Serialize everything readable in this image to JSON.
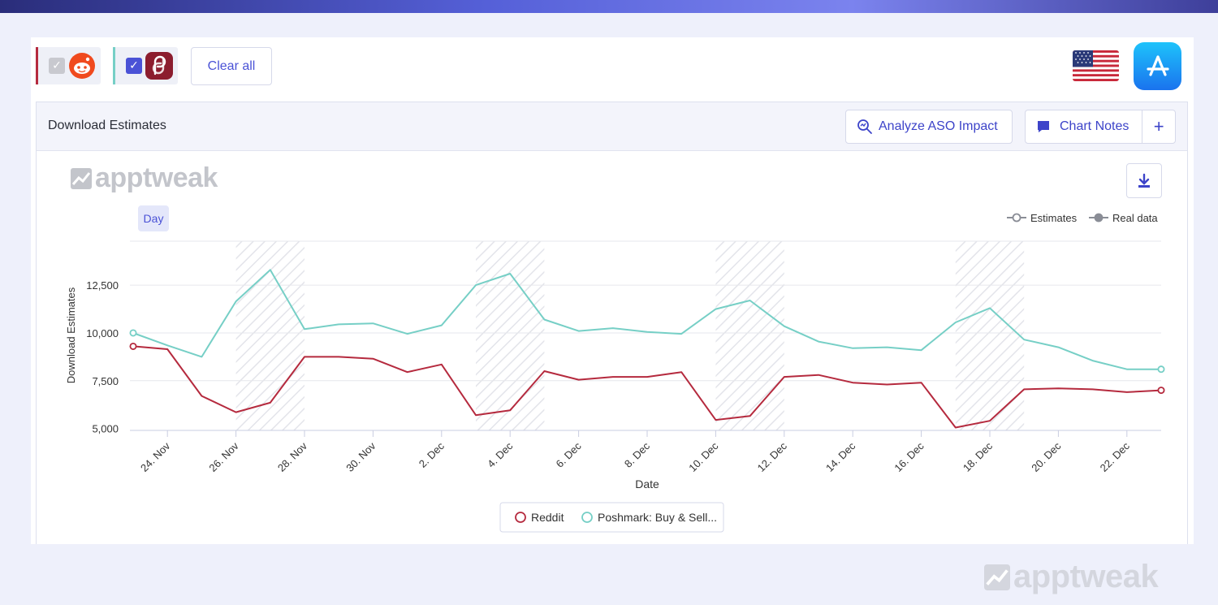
{
  "toolbar": {
    "clear_label": "Clear all"
  },
  "apps": [
    {
      "name": "Reddit",
      "color": "#b52a3e",
      "checked": true,
      "icon": "reddit-icon"
    },
    {
      "name": "Poshmark",
      "color": "#76cfc6",
      "checked": true,
      "icon": "poshmark-icon"
    }
  ],
  "country_icon": "us-flag-icon",
  "store_icon": "app-store-icon",
  "card": {
    "title": "Download Estimates",
    "analyze_label": "Analyze ASO Impact",
    "notes_label": "Chart Notes",
    "add_label": "+"
  },
  "brand": {
    "watermark": "apptweak"
  },
  "granularity": "Day",
  "chart_data": {
    "type": "line",
    "title": "",
    "xlabel": "Date",
    "ylabel": "Download Estimates",
    "ylim": [
      4900,
      14800
    ],
    "yticks": [
      5000,
      7500,
      10000,
      12500
    ],
    "ytick_labels": [
      "5,000",
      "7,500",
      "10,000",
      "12,500"
    ],
    "x": [
      "23 Nov",
      "24 Nov",
      "25 Nov",
      "26 Nov",
      "27 Nov",
      "28 Nov",
      "29 Nov",
      "30 Nov",
      "1 Dec",
      "2 Dec",
      "3 Dec",
      "4 Dec",
      "5 Dec",
      "6 Dec",
      "7 Dec",
      "8 Dec",
      "9 Dec",
      "10 Dec",
      "11 Dec",
      "12 Dec",
      "13 Dec",
      "14 Dec",
      "15 Dec",
      "16 Dec",
      "17 Dec",
      "18 Dec",
      "19 Dec",
      "20 Dec",
      "21 Dec",
      "22 Dec",
      "23 Dec"
    ],
    "xtick_labels": [
      "24. Nov",
      "26. Nov",
      "28. Nov",
      "30. Nov",
      "2. Dec",
      "4. Dec",
      "6. Dec",
      "8. Dec",
      "10. Dec",
      "12. Dec",
      "14. Dec",
      "16. Dec",
      "18. Dec",
      "20. Dec",
      "22. Dec"
    ],
    "shaded_ranges": [
      [
        "26 Nov",
        "28 Nov"
      ],
      [
        "3 Dec",
        "5 Dec"
      ],
      [
        "10 Dec",
        "12 Dec"
      ],
      [
        "17 Dec",
        "19 Dec"
      ]
    ],
    "series": [
      {
        "name": "Reddit",
        "color": "#b52a3e",
        "values": [
          9300,
          9150,
          6700,
          5850,
          6350,
          8750,
          8750,
          8650,
          7950,
          8350,
          5700,
          5950,
          8000,
          7550,
          7700,
          7700,
          7950,
          5450,
          5650,
          7700,
          7800,
          7400,
          7300,
          7400,
          5050,
          5400,
          7050,
          7100,
          7050,
          6900,
          7000
        ]
      },
      {
        "name": "Poshmark: Buy & Sell...",
        "color": "#76cfc6",
        "values": [
          10000,
          9350,
          8750,
          11650,
          13300,
          10200,
          10450,
          10500,
          9950,
          10400,
          12500,
          13100,
          10700,
          10100,
          10250,
          10050,
          9950,
          11250,
          11700,
          10350,
          9550,
          9200,
          9250,
          9100,
          10550,
          11300,
          9650,
          9250,
          8550,
          8100,
          8100
        ]
      }
    ],
    "legend_types": [
      {
        "label": "Estimates",
        "style": "hollow"
      },
      {
        "label": "Real data",
        "style": "filled"
      }
    ],
    "legend_placement": "bottom",
    "grid": true
  }
}
